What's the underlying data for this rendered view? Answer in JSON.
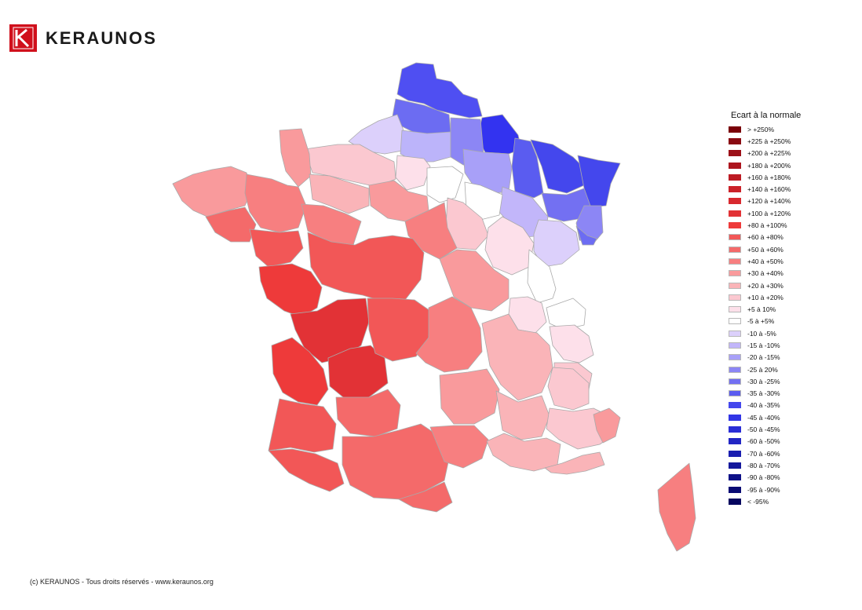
{
  "brand": {
    "name": "KERAUNOS"
  },
  "legend": {
    "title": "Ecart à la normale",
    "items": [
      {
        "label": "> +250%",
        "color": "#7a0008"
      },
      {
        "label": "+225 à +250%",
        "color": "#8a0a12"
      },
      {
        "label": "+200 à +225%",
        "color": "#9c1018"
      },
      {
        "label": "+180 à +200%",
        "color": "#ad151e"
      },
      {
        "label": "+160 à +180%",
        "color": "#bd1b24"
      },
      {
        "label": "+140 à +160%",
        "color": "#cb2229"
      },
      {
        "label": "+120 à +140%",
        "color": "#d8292f"
      },
      {
        "label": "+100 à +120%",
        "color": "#e23236"
      },
      {
        "label": "+80 à +100%",
        "color": "#ee3a3a"
      },
      {
        "label": "+60 à +80%",
        "color": "#f25757"
      },
      {
        "label": "+50 à +60%",
        "color": "#f46a6a"
      },
      {
        "label": "+40 à +50%",
        "color": "#f77f80"
      },
      {
        "label": "+30 à +40%",
        "color": "#f99a9c"
      },
      {
        "label": "+20 à +30%",
        "color": "#fab4b8"
      },
      {
        "label": "+10 à +20%",
        "color": "#fbc8d0"
      },
      {
        "label": "+5 à 10%",
        "color": "#fde0ea"
      },
      {
        "label": "-5 à +5%",
        "color": "#ffffff"
      },
      {
        "label": "-10 à -5%",
        "color": "#dcd0fb"
      },
      {
        "label": "-15 à -10%",
        "color": "#c2b6fa"
      },
      {
        "label": "-20 à -15%",
        "color": "#a8a0f8"
      },
      {
        "label": "-25 à 20%",
        "color": "#8c86f5"
      },
      {
        "label": "-30 à -25%",
        "color": "#7370f2"
      },
      {
        "label": "-35 à -30%",
        "color": "#5b5cf0"
      },
      {
        "label": "-40 à -35%",
        "color": "#4447ed"
      },
      {
        "label": "-45 à -40%",
        "color": "#3236e6"
      },
      {
        "label": "-50 à -45%",
        "color": "#2a2ed6"
      },
      {
        "label": "-60 à -50%",
        "color": "#2226c4"
      },
      {
        "label": "-70 à -60%",
        "color": "#1a1eb0"
      },
      {
        "label": "-80 à -70%",
        "color": "#14189c"
      },
      {
        "label": "-90 à -80%",
        "color": "#0e1188"
      },
      {
        "label": "-95 à -90%",
        "color": "#090b74"
      },
      {
        "label": "< -95%",
        "color": "#05065f"
      }
    ]
  },
  "map": {
    "regions": [
      {
        "name": "nord",
        "color": "#4f4ff2"
      },
      {
        "name": "pas-de-calais",
        "color": "#6c6cf2"
      },
      {
        "name": "somme",
        "color": "#dcd0fb"
      },
      {
        "name": "aisne",
        "color": "#bcb4fa"
      },
      {
        "name": "ardennes",
        "color": "#3333f0"
      },
      {
        "name": "marne",
        "color": "#8c86f5"
      },
      {
        "name": "aube",
        "color": "#a8a0f8"
      },
      {
        "name": "meuse",
        "color": "#5a5cf0"
      },
      {
        "name": "moselle",
        "color": "#4447ed"
      },
      {
        "name": "bas-rhin",
        "color": "#4447ed"
      },
      {
        "name": "meurthe-et-moselle",
        "color": "#7370f2"
      },
      {
        "name": "vosges",
        "color": "#8c86f5"
      },
      {
        "name": "haute-marne",
        "color": "#c2b6fa"
      },
      {
        "name": "haute-saone",
        "color": "#dcd0fb"
      },
      {
        "name": "haut-rhin",
        "color": "#6c6cf2"
      },
      {
        "name": "oise",
        "color": "#fde0ea"
      },
      {
        "name": "ile-de-france",
        "color": "#ffffff"
      },
      {
        "name": "seine-et-marne",
        "color": "#ffffff"
      },
      {
        "name": "yonne",
        "color": "#fbc8d0"
      },
      {
        "name": "cote-d-or",
        "color": "#fde0ea"
      },
      {
        "name": "doubs",
        "color": "#ffffff"
      },
      {
        "name": "jura",
        "color": "#fde0ea"
      },
      {
        "name": "ain",
        "color": "#ffffff"
      },
      {
        "name": "haute-savoie",
        "color": "#fde0ea"
      },
      {
        "name": "savoie",
        "color": "#fbc8d0"
      },
      {
        "name": "normandie-est",
        "color": "#fbc8d0"
      },
      {
        "name": "manche",
        "color": "#f99a9c"
      },
      {
        "name": "calvados-orne",
        "color": "#fab4b8"
      },
      {
        "name": "eure-et-loir",
        "color": "#f99a9c"
      },
      {
        "name": "loiret",
        "color": "#f77f80"
      },
      {
        "name": "bretagne-ouest",
        "color": "#f99a9c"
      },
      {
        "name": "bretagne-est",
        "color": "#f77f80"
      },
      {
        "name": "morbihan",
        "color": "#f46a6a"
      },
      {
        "name": "loire-atlantique",
        "color": "#f25757"
      },
      {
        "name": "sarthe",
        "color": "#f77f80"
      },
      {
        "name": "centre",
        "color": "#f25757"
      },
      {
        "name": "vendee",
        "color": "#ee3a3a"
      },
      {
        "name": "charente",
        "color": "#e23236"
      },
      {
        "name": "gironde",
        "color": "#ee3a3a"
      },
      {
        "name": "dordogne",
        "color": "#e23236"
      },
      {
        "name": "limousin",
        "color": "#f25757"
      },
      {
        "name": "landes",
        "color": "#f25757"
      },
      {
        "name": "lot-et-garonne",
        "color": "#f46a6a"
      },
      {
        "name": "pyrenees-atlantiques",
        "color": "#f25757"
      },
      {
        "name": "midi-pyrenees",
        "color": "#f46a6a"
      },
      {
        "name": "aude",
        "color": "#f46a6a"
      },
      {
        "name": "auvergne",
        "color": "#f77f80"
      },
      {
        "name": "bourgogne-sud",
        "color": "#f99a9c"
      },
      {
        "name": "rhone-alpes-ouest",
        "color": "#fab4b8"
      },
      {
        "name": "lozere-gard",
        "color": "#f99a9c"
      },
      {
        "name": "herault",
        "color": "#f77f80"
      },
      {
        "name": "drome-ardeche",
        "color": "#fab4b8"
      },
      {
        "name": "isere",
        "color": "#fbc8d0"
      },
      {
        "name": "alpes-sud",
        "color": "#fbc8d0"
      },
      {
        "name": "provence",
        "color": "#fab4b8"
      },
      {
        "name": "var",
        "color": "#fab4b8"
      },
      {
        "name": "alpes-maritimes",
        "color": "#f99a9c"
      },
      {
        "name": "corse",
        "color": "#f77f80"
      }
    ]
  },
  "footer": {
    "text": "(c) KERAUNOS - Tous droits réservés - www.keraunos.org"
  }
}
